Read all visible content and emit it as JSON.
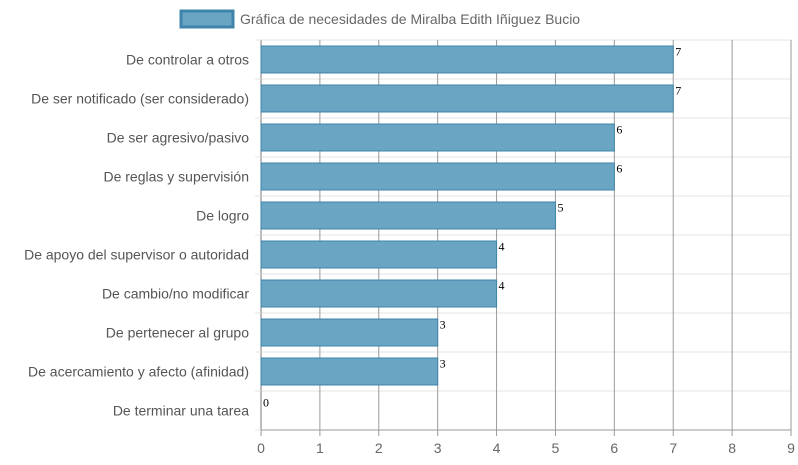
{
  "chart_data": {
    "type": "bar",
    "orientation": "horizontal",
    "categories": [
      "De controlar a otros",
      "De ser notificado (ser considerado)",
      "De ser agresivo/pasivo",
      "De reglas y supervisión",
      "De logro",
      "De apoyo del supervisor o autoridad",
      "De cambio/no modificar",
      "De pertenecer al grupo",
      "De acercamiento y afecto (afinidad)",
      "De terminar una tarea"
    ],
    "series": [
      {
        "name": "Gráfica de necesidades de Miralba Edith Iñiguez Bucio",
        "values": [
          7,
          7,
          6,
          6,
          5,
          4,
          4,
          3,
          3,
          0
        ]
      }
    ],
    "xlim": [
      0,
      9
    ],
    "xticks": [
      0,
      1,
      2,
      3,
      4,
      5,
      6,
      7,
      8,
      9
    ],
    "grid": true,
    "legend_position": "top-center",
    "colors": {
      "bar_fill": "#6aa5c4",
      "bar_stroke": "#3f84ab",
      "grid_major": "#9a9a9a",
      "grid_minor": "#e4e4e4"
    }
  }
}
